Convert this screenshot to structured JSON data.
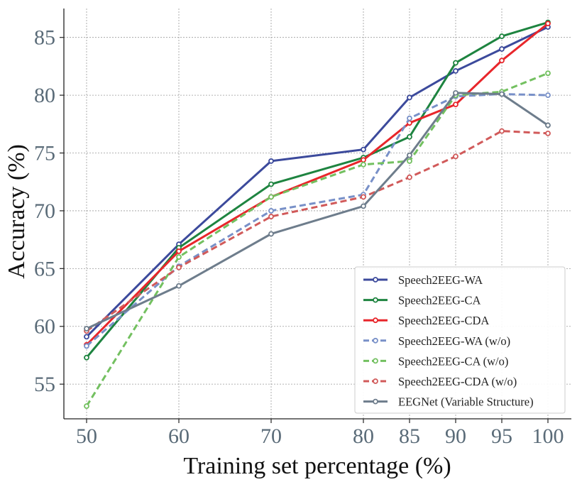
{
  "chart_data": {
    "type": "line",
    "title": "",
    "xlabel": "Training set percentage (%)",
    "ylabel": "Accuracy (%)",
    "categories": [
      "50",
      "60",
      "70",
      "80",
      "85",
      "90",
      "95",
      "100"
    ],
    "ylim": [
      52,
      87.5
    ],
    "yticks": [
      55,
      60,
      65,
      70,
      75,
      80,
      85
    ],
    "grid": true,
    "legend_position": "lower-right",
    "series": [
      {
        "name": "Speech2EEG-WA",
        "color": "#3c4a9c",
        "dashed": false,
        "values": [
          59.1,
          67.1,
          74.3,
          75.3,
          79.8,
          82.1,
          84.0,
          85.9
        ]
      },
      {
        "name": "Speech2EEG-CA",
        "color": "#1e8440",
        "dashed": false,
        "values": [
          57.3,
          66.8,
          72.3,
          74.6,
          76.4,
          82.8,
          85.1,
          86.3
        ]
      },
      {
        "name": "Speech2EEG-CDA",
        "color": "#e8262b",
        "dashed": false,
        "values": [
          58.4,
          66.5,
          71.2,
          74.4,
          77.6,
          79.2,
          83.0,
          86.2
        ]
      },
      {
        "name": "Speech2EEG-WA (w/o)",
        "color": "#7890c8",
        "dashed": true,
        "values": [
          58.3,
          65.2,
          70.0,
          71.4,
          78.0,
          79.9,
          80.1,
          80.0
        ]
      },
      {
        "name": "Speech2EEG-CA (w/o)",
        "color": "#73c060",
        "dashed": true,
        "values": [
          53.1,
          66.0,
          71.2,
          74.0,
          74.3,
          80.0,
          80.3,
          81.9
        ]
      },
      {
        "name": "Speech2EEG-CDA (w/o)",
        "color": "#d15a5a",
        "dashed": true,
        "values": [
          59.6,
          65.1,
          69.5,
          71.2,
          72.9,
          74.7,
          76.9,
          76.7
        ]
      },
      {
        "name": "EEGNet (Variable Structure)",
        "color": "#6e7d8c",
        "dashed": false,
        "values": [
          59.8,
          63.5,
          68.0,
          70.4,
          74.8,
          80.2,
          80.1,
          77.4
        ]
      }
    ]
  }
}
